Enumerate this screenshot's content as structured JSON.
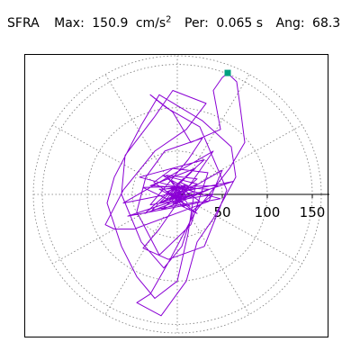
{
  "header": {
    "station": "SFRA",
    "max_label": "Max:",
    "max_value": "150.9",
    "max_unit": "cm/s",
    "max_unit_sup": "2",
    "period_label": "Per:",
    "period_value": "0.065 s",
    "angle_label": "Ang:",
    "angle_value": "68.3"
  },
  "chart_data": {
    "type": "line",
    "title": "",
    "xlabel": "",
    "ylabel": "",
    "rlim": [
      0,
      160
    ],
    "radial_ticks": [
      "50",
      "100",
      "150"
    ],
    "radial_tick_values": [
      50,
      100,
      150
    ],
    "grid": "dotted",
    "line_color": "#8a00d4",
    "marker_color": "#00a080",
    "max_point": {
      "x": 56,
      "y": 140.2
    },
    "series": [
      {
        "values": [
          [
            0,
            0
          ],
          [
            3,
            4
          ],
          [
            -4,
            6
          ],
          [
            5,
            -5
          ],
          [
            -6,
            -3
          ],
          [
            8,
            2
          ],
          [
            -7,
            8
          ],
          [
            4,
            -9
          ],
          [
            -3,
            3
          ],
          [
            7,
            9
          ],
          [
            -9,
            -6
          ],
          [
            2,
            10
          ],
          [
            10,
            -2
          ],
          [
            -8,
            1
          ],
          [
            6,
            -8
          ],
          [
            -2,
            -10
          ],
          [
            11,
            5
          ],
          [
            -10,
            9
          ],
          [
            0,
            6
          ],
          [
            5,
            -4
          ],
          [
            -12,
            3
          ],
          [
            9,
            11
          ],
          [
            -5,
            -12
          ],
          [
            14,
            -1
          ],
          [
            -13,
            -7
          ],
          [
            3,
            14
          ],
          [
            12,
            10
          ],
          [
            -15,
            6
          ],
          [
            8,
            -15
          ],
          [
            -6,
            16
          ],
          [
            18,
            3
          ],
          [
            -20,
            -10
          ],
          [
            22,
            12
          ],
          [
            -16,
            22
          ],
          [
            25,
            -8
          ],
          [
            -28,
            -18
          ],
          [
            20,
            30
          ],
          [
            -30,
            10
          ],
          [
            35,
            6
          ],
          [
            -36,
            -22
          ],
          [
            30,
            40
          ],
          [
            -42,
            20
          ],
          [
            48,
            -5
          ],
          [
            -55,
            -25
          ],
          [
            62,
            15
          ],
          [
            -60,
            -10
          ],
          [
            40,
            50
          ],
          [
            -20,
            -40
          ],
          [
            -38,
            -62
          ],
          [
            -10,
            -75
          ],
          [
            30,
            -60
          ],
          [
            55,
            5
          ],
          [
            25,
            78
          ],
          [
            -12,
            100
          ],
          [
            -30,
            115
          ],
          [
            -5,
            95
          ],
          [
            15,
            60
          ],
          [
            48,
            75
          ],
          [
            40,
            120
          ],
          [
            50,
            135
          ],
          [
            56,
            140
          ],
          [
            66,
            130
          ],
          [
            70,
            100
          ],
          [
            75,
            60
          ],
          [
            58,
            30
          ],
          [
            20,
            -20
          ],
          [
            -8,
            -75
          ],
          [
            -30,
            -115
          ],
          [
            -45,
            -125
          ],
          [
            -18,
            -140
          ],
          [
            10,
            -100
          ],
          [
            22,
            -55
          ],
          [
            40,
            -28
          ],
          [
            65,
            20
          ],
          [
            60,
            55
          ],
          [
            28,
            85
          ],
          [
            -20,
            115
          ],
          [
            -40,
            80
          ],
          [
            -70,
            20
          ],
          [
            -78,
            -10
          ],
          [
            -62,
            -60
          ],
          [
            -45,
            -95
          ],
          [
            -25,
            -120
          ],
          [
            0,
            -100
          ],
          [
            12,
            -45
          ],
          [
            20,
            10
          ],
          [
            50,
            28
          ],
          [
            35,
            -8
          ],
          [
            -48,
            -40
          ],
          [
            -70,
            -40
          ],
          [
            -80,
            -35
          ],
          [
            -60,
            5
          ],
          [
            -25,
            50
          ],
          [
            10,
            75
          ],
          [
            32,
            105
          ],
          [
            -5,
            120
          ],
          [
            -25,
            90
          ],
          [
            -58,
            45
          ],
          [
            -62,
            0
          ],
          [
            -40,
            -55
          ],
          [
            -15,
            -85
          ],
          [
            5,
            -60
          ],
          [
            18,
            -18
          ],
          [
            40,
            0
          ],
          [
            -30,
            -12
          ],
          [
            12,
            40
          ],
          [
            28,
            65
          ],
          [
            -14,
            50
          ],
          [
            -35,
            20
          ],
          [
            -45,
            -20
          ],
          [
            -20,
            -70
          ],
          [
            15,
            -35
          ],
          [
            34,
            25
          ],
          [
            -5,
            30
          ],
          [
            -26,
            14
          ],
          [
            22,
            -22
          ],
          [
            -38,
            8
          ],
          [
            45,
            10
          ],
          [
            -18,
            -18
          ],
          [
            22,
            18
          ],
          [
            -12,
            22
          ],
          [
            14,
            -14
          ],
          [
            -20,
            6
          ],
          [
            18,
            8
          ],
          [
            -8,
            -6
          ],
          [
            6,
            4
          ],
          [
            0,
            0
          ]
        ]
      }
    ]
  }
}
